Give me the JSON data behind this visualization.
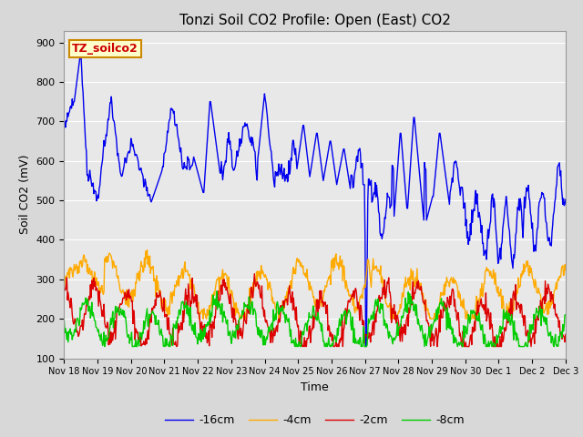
{
  "title": "Tonzi Soil CO2 Profile: Open (East) CO2",
  "ylabel": "Soil CO2 (mV)",
  "xlabel": "Time",
  "annotation": "TZ_soilco2",
  "ylim": [
    100,
    930
  ],
  "yticks": [
    100,
    200,
    300,
    400,
    500,
    600,
    700,
    800,
    900
  ],
  "x_labels": [
    "Nov 18",
    "Nov 19",
    "Nov 20",
    "Nov 21",
    "Nov 22",
    "Nov 23",
    "Nov 24",
    "Nov 25",
    "Nov 26",
    "Nov 27",
    "Nov 28",
    "Nov 29",
    "Nov 30",
    "Dec 1",
    "Dec 2",
    "Dec 3"
  ],
  "colors": {
    "neg2cm": "#dd0000",
    "neg4cm": "#ffaa00",
    "neg8cm": "#00cc00",
    "neg16cm": "#0000ee"
  },
  "legend_labels": [
    "-2cm",
    "-4cm",
    "-8cm",
    "-16cm"
  ],
  "fig_bg": "#d8d8d8",
  "plot_bg": "#e8e8e8",
  "annotation_bg": "#ffffcc",
  "annotation_border": "#cc8800",
  "annotation_text_color": "#cc0000",
  "grid_color": "#ffffff",
  "title_fontsize": 11,
  "label_fontsize": 9,
  "tick_fontsize": 8,
  "legend_fontsize": 9
}
